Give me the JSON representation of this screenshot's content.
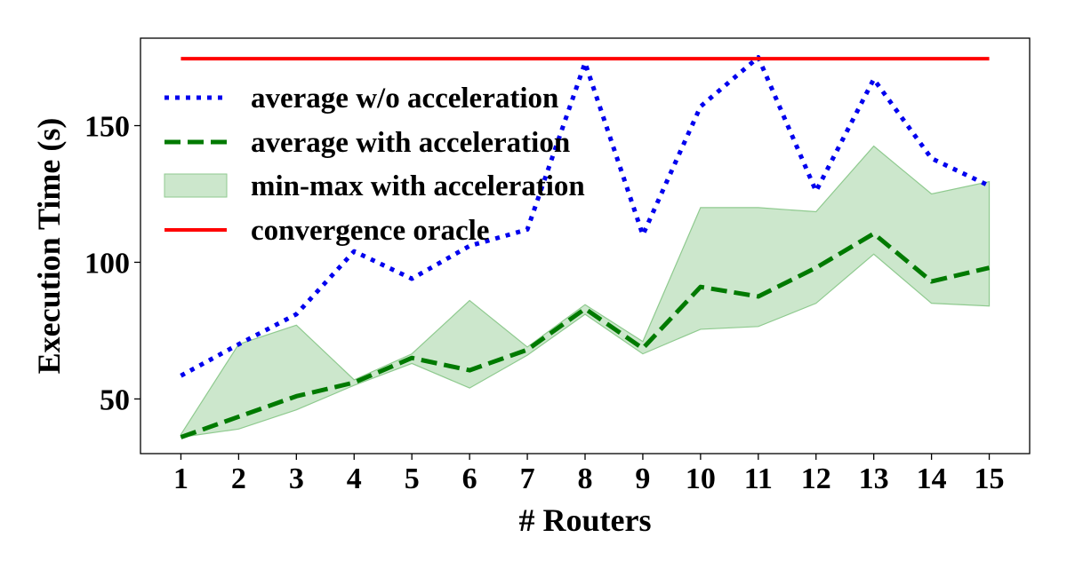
{
  "chart_data": {
    "type": "line",
    "title": "",
    "xlabel": "# Routers",
    "ylabel": "Execution Time (s)",
    "x": [
      1,
      2,
      3,
      4,
      5,
      6,
      7,
      8,
      9,
      10,
      11,
      12,
      13,
      14,
      15
    ],
    "xlim": [
      0.3,
      15.7
    ],
    "ylim": [
      30,
      182
    ],
    "yticks": [
      50,
      100,
      150
    ],
    "grid": false,
    "legend_position": "top-left",
    "series": [
      {
        "name": "average w/o acceleration",
        "style": "dotted",
        "color": "#0000ee",
        "values": [
          58.5,
          70,
          81,
          104,
          94,
          106,
          112,
          173,
          110,
          157,
          175,
          126,
          167,
          138,
          128
        ]
      },
      {
        "name": "average with acceleration",
        "style": "dashed",
        "color": "#007a00",
        "values": [
          36,
          43.5,
          51,
          56,
          65,
          60.5,
          68,
          83,
          68.5,
          91,
          87.5,
          98,
          110.5,
          93,
          98
        ]
      },
      {
        "name": "min-max with acceleration",
        "style": "band",
        "color": "#8fca8f",
        "min": [
          36,
          39,
          46,
          55,
          63,
          54,
          66,
          81,
          66.5,
          75.5,
          76.5,
          85,
          103,
          85,
          84
        ],
        "max": [
          37,
          70,
          77,
          57,
          66.5,
          86,
          69,
          84.5,
          71,
          120,
          120,
          118.5,
          142.5,
          125,
          129.5
        ]
      },
      {
        "name": "convergence oracle",
        "style": "solid",
        "color": "#ff0000",
        "values": [
          174.5,
          174.5,
          174.5,
          174.5,
          174.5,
          174.5,
          174.5,
          174.5,
          174.5,
          174.5,
          174.5,
          174.5,
          174.5,
          174.5,
          174.5
        ]
      }
    ]
  }
}
